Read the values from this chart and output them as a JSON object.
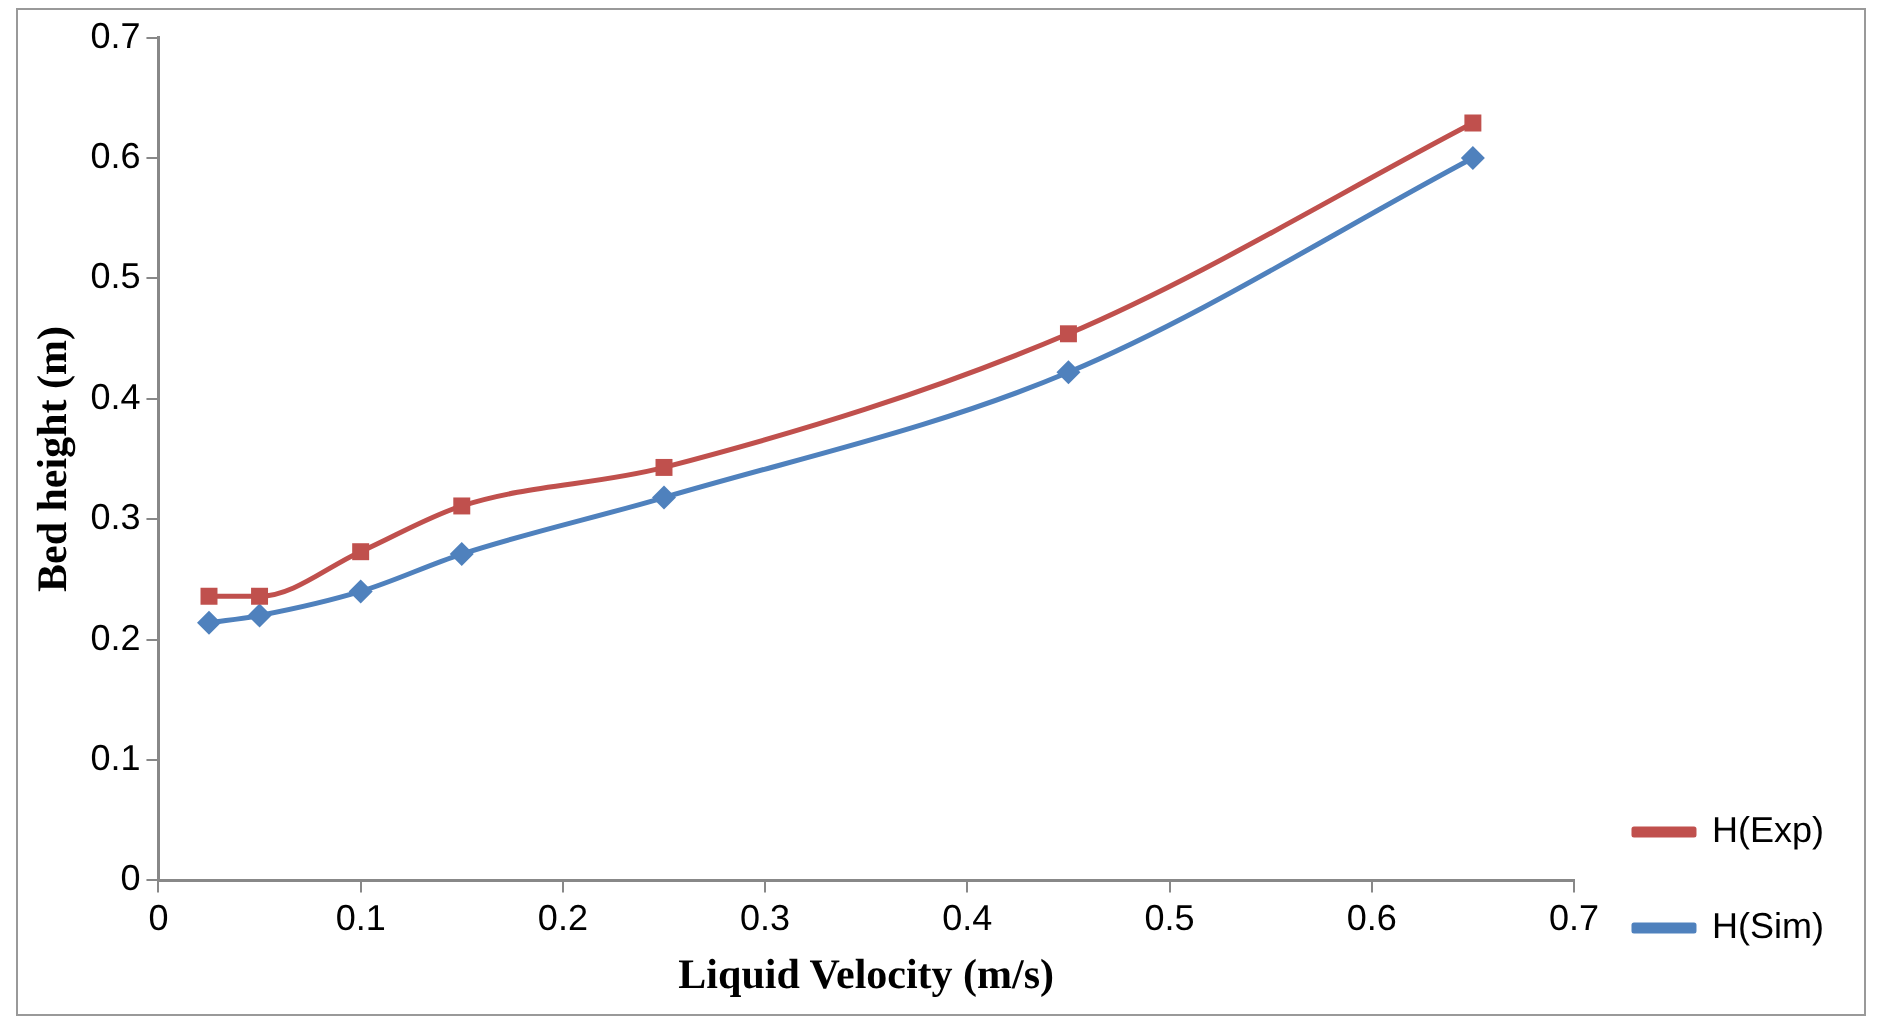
{
  "chart_data": {
    "type": "line",
    "xlabel": "Liquid Velocity (m/s)",
    "ylabel": "Bed height (m)",
    "x": [
      0.025,
      0.05,
      0.1,
      0.15,
      0.25,
      0.45,
      0.65
    ],
    "series": [
      {
        "name": "H(Exp)",
        "color": "#c0504d",
        "marker": "square",
        "values": [
          0.236,
          0.236,
          0.273,
          0.311,
          0.343,
          0.454,
          0.629
        ]
      },
      {
        "name": "H(Sim)",
        "color": "#4f81bd",
        "marker": "diamond",
        "values": [
          0.214,
          0.22,
          0.24,
          0.271,
          0.318,
          0.422,
          0.6
        ]
      }
    ],
    "xlim": [
      0,
      0.7
    ],
    "xticks": [
      0,
      0.1,
      0.2,
      0.3,
      0.4,
      0.5,
      0.6,
      0.7
    ],
    "ylim": [
      0,
      0.7
    ],
    "yticks": [
      0,
      0.1,
      0.2,
      0.3,
      0.4,
      0.5,
      0.6,
      0.7
    ],
    "grid": false,
    "legend": "right"
  }
}
